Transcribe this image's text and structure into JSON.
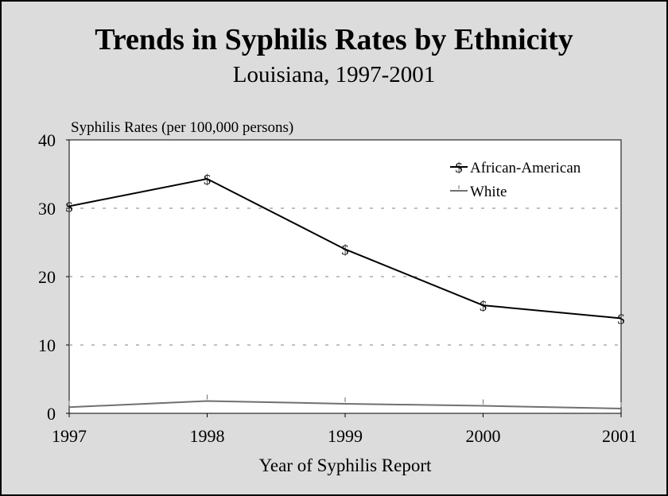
{
  "chart_data": {
    "type": "line",
    "title": "Trends in Syphilis Rates by Ethnicity",
    "subtitle": "Louisiana, 1997-2001",
    "ylabel": "Syphilis Rates (per 100,000 persons)",
    "xlabel": "Year of Syphilis Report",
    "categories": [
      "1997",
      "1998",
      "1999",
      "2000",
      "2001"
    ],
    "ylim": [
      0,
      40
    ],
    "yticks": [
      "0",
      "10",
      "20",
      "30",
      "40"
    ],
    "grid": "dashed horizontal",
    "legend_position": "top-right",
    "series": [
      {
        "name": "African-American",
        "marker": "$",
        "color": "#000000",
        "values": [
          30.3,
          34.3,
          24.0,
          15.8,
          13.9
        ]
      },
      {
        "name": "White",
        "marker": "|",
        "color": "#707070",
        "values": [
          0.9,
          1.8,
          1.4,
          1.1,
          0.7
        ]
      }
    ]
  }
}
